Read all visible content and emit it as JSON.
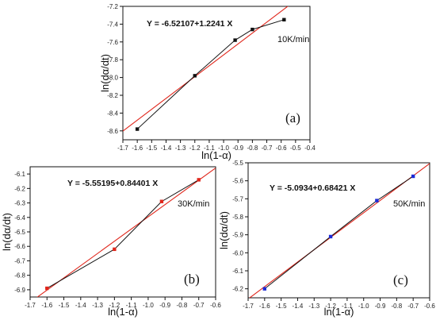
{
  "chart_data": [
    {
      "type": "line",
      "panel_label": "(a)",
      "equation": "Y = -6.52107+1.2241 X",
      "rate_label": "10K/min",
      "xlabel": "ln(1-α)",
      "ylabel": "ln(dα/dt)",
      "xlim": [
        -1.7,
        -0.4
      ],
      "ylim": [
        -8.7,
        -7.2
      ],
      "xticks": [
        -1.7,
        -1.6,
        -1.5,
        -1.4,
        -1.3,
        -1.2,
        -1.1,
        -1.0,
        -0.9,
        -0.8,
        -0.7,
        -0.6,
        -0.5,
        -0.4
      ],
      "xtick_labels": [
        "-1.7",
        "-1.6",
        "-1.5",
        "-1.4",
        "-1.3",
        "-1.2",
        "-1.1",
        "-1.0",
        "-0.9",
        "-0.8",
        "-0.7",
        "-0.6",
        "-0.5",
        "-0.4"
      ],
      "yticks": [
        -8.6,
        -8.4,
        -8.2,
        -8.0,
        -7.8,
        -7.6,
        -7.4,
        -7.2
      ],
      "ytick_labels": [
        "-8.6",
        "-8.4",
        "-8.2",
        "-8.0",
        "-7.8",
        "-7.6",
        "-7.4",
        "-7.2"
      ],
      "x": [
        -1.6,
        -1.2,
        -0.92,
        -0.8,
        -0.58
      ],
      "y": [
        -8.58,
        -7.98,
        -7.58,
        -7.46,
        -7.35
      ],
      "fit": {
        "intercept": -6.52107,
        "slope": 1.2241
      },
      "marker_color": "#111111",
      "line_color": "#111111",
      "fit_color": "#e0261b"
    },
    {
      "type": "line",
      "panel_label": "(b)",
      "equation": "Y = -5.55195+0.84401 X",
      "rate_label": "30K/min",
      "xlabel": "ln(1-α)",
      "ylabel": "ln(dα/dt)",
      "xlim": [
        -1.7,
        -0.6
      ],
      "ylim": [
        -6.95,
        -6.05
      ],
      "xticks": [
        -1.7,
        -1.6,
        -1.5,
        -1.4,
        -1.3,
        -1.2,
        -1.1,
        -1.0,
        -0.9,
        -0.8,
        -0.7,
        -0.6
      ],
      "xtick_labels": [
        "-1.7",
        "-1.6",
        "-1.5",
        "-1.4",
        "-1.3",
        "-1.2",
        "-1.1",
        "-1.0",
        "-0.9",
        "-0.8",
        "-0.7",
        "-0.6"
      ],
      "yticks": [
        -6.9,
        -6.8,
        -6.7,
        -6.6,
        -6.5,
        -6.4,
        -6.3,
        -6.2,
        -6.1
      ],
      "ytick_labels": [
        "-6.9",
        "-6.8",
        "-6.7",
        "-6.6",
        "-6.5",
        "-6.4",
        "-6.3",
        "-6.2",
        "-6.1"
      ],
      "x": [
        -1.6,
        -1.2,
        -0.92,
        -0.7
      ],
      "y": [
        -6.89,
        -6.62,
        -6.29,
        -6.14
      ],
      "fit": {
        "intercept": -5.55195,
        "slope": 0.84401
      },
      "marker_color": "#e0261b",
      "line_color": "#111111",
      "fit_color": "#e0261b"
    },
    {
      "type": "line",
      "panel_label": "(c)",
      "equation": "Y = -5.0934+0.68421 X",
      "rate_label": "50K/min",
      "xlabel": "ln(1-α)",
      "ylabel": "ln(dα/dt)",
      "xlim": [
        -1.7,
        -0.6
      ],
      "ylim": [
        -6.25,
        -5.5
      ],
      "xticks": [
        -1.7,
        -1.6,
        -1.5,
        -1.4,
        -1.3,
        -1.2,
        -1.1,
        -1.0,
        -0.9,
        -0.8,
        -0.7,
        -0.6
      ],
      "xtick_labels": [
        "-1.7",
        "-1.6",
        "-1.5",
        "-1.4",
        "-1.3",
        "-1.2",
        "-1.1",
        "-1.0",
        "-0.9",
        "-0.8",
        "-0.7",
        "-0.6"
      ],
      "yticks": [
        -6.2,
        -6.1,
        -6.0,
        -5.9,
        -5.8,
        -5.7,
        -5.6,
        -5.5
      ],
      "ytick_labels": [
        "-6.2",
        "-6.1",
        "-6.0",
        "-5.9",
        "-5.8",
        "-5.7",
        "-5.6",
        "-5.5"
      ],
      "x": [
        -1.6,
        -1.2,
        -0.92,
        -0.7
      ],
      "y": [
        -6.2,
        -5.91,
        -5.71,
        -5.575
      ],
      "fit": {
        "intercept": -5.0934,
        "slope": 0.68421
      },
      "marker_color": "#1c2bd6",
      "line_color": "#111111",
      "fit_color": "#e0261b"
    }
  ]
}
